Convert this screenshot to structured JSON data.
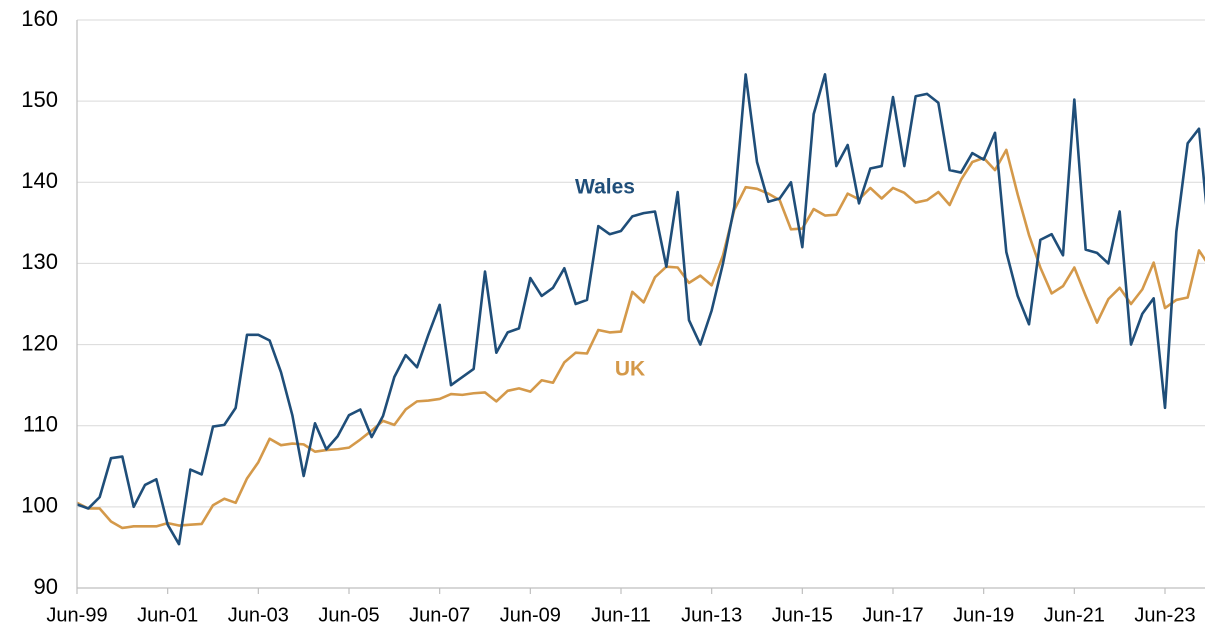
{
  "chart_data": {
    "type": "line",
    "categories": [
      "Jun-99",
      null,
      null,
      null,
      null,
      null,
      null,
      null,
      "Jun-01",
      null,
      null,
      null,
      null,
      null,
      null,
      null,
      "Jun-03",
      null,
      null,
      null,
      null,
      null,
      null,
      null,
      "Jun-05",
      null,
      null,
      null,
      null,
      null,
      null,
      null,
      "Jun-07",
      null,
      null,
      null,
      null,
      null,
      null,
      null,
      "Jun-09",
      null,
      null,
      null,
      null,
      null,
      null,
      null,
      "Jun-11",
      null,
      null,
      null,
      null,
      null,
      null,
      null,
      "Jun-13",
      null,
      null,
      null,
      null,
      null,
      null,
      null,
      "Jun-15",
      null,
      null,
      null,
      null,
      null,
      null,
      null,
      "Jun-17",
      null,
      null,
      null,
      null,
      null,
      null,
      null,
      "Jun-19",
      null,
      null,
      null,
      null,
      null,
      null,
      null,
      "Jun-21",
      null,
      null,
      null,
      null,
      null,
      null,
      null,
      "Jun-23",
      null,
      null,
      null,
      null
    ],
    "series": [
      {
        "name": "Wales",
        "color": "#1f4e79",
        "values": [
          100.3,
          99.8,
          101.2,
          106,
          106.2,
          100,
          102.7,
          103.4,
          97.8,
          95.4,
          104.6,
          104,
          109.9,
          110.1,
          112.2,
          121.2,
          121.2,
          120.5,
          116.6,
          111.3,
          103.8,
          110.3,
          107.1,
          108.7,
          111.3,
          112,
          108.6,
          111.2,
          116,
          118.7,
          117.2,
          121.2,
          124.9,
          115,
          116,
          117,
          129,
          119,
          121.5,
          122,
          128.2,
          126,
          127,
          129.4,
          125,
          125.5,
          134.6,
          133.6,
          134,
          135.8,
          136.2,
          136.4,
          129.6,
          138.8,
          123,
          120,
          124.2,
          130,
          137,
          153.3,
          142.5,
          137.6,
          138,
          140,
          132,
          148.4,
          153.3,
          142,
          144.6,
          137.4,
          141.7,
          142,
          150.5,
          142,
          150.6,
          150.9,
          149.8,
          141.5,
          141.2,
          143.6,
          142.8,
          146.1,
          131.4,
          126,
          122.5,
          132.9,
          133.6,
          131,
          150.2,
          131.7,
          131.3,
          130,
          136.4,
          120,
          123.8,
          125.7,
          112.2,
          133.9,
          144.8,
          146.6,
          132
        ]
      },
      {
        "name": "UK",
        "color": "#d4994a",
        "values": [
          100.5,
          99.8,
          99.8,
          98.2,
          97.4,
          97.6,
          97.6,
          97.6,
          98,
          97.7,
          97.8,
          97.9,
          100.2,
          101,
          100.5,
          103.5,
          105.5,
          108.4,
          107.6,
          107.8,
          107.7,
          106.8,
          107,
          107.1,
          107.3,
          108.3,
          109.4,
          110.6,
          110.1,
          112,
          113,
          113.1,
          113.3,
          113.9,
          113.8,
          114,
          114.1,
          113,
          114.3,
          114.6,
          114.2,
          115.6,
          115.3,
          117.8,
          119,
          118.9,
          121.8,
          121.5,
          121.6,
          126.5,
          125.2,
          128.3,
          129.6,
          129.5,
          127.6,
          128.5,
          127.3,
          131,
          136.6,
          139.4,
          139.2,
          138.6,
          137.8,
          134.2,
          134.3,
          136.7,
          135.9,
          136,
          138.6,
          137.9,
          139.3,
          138,
          139.3,
          138.7,
          137.5,
          137.8,
          138.8,
          137.2,
          140.3,
          142.5,
          143,
          141.5,
          144,
          138.5,
          133.5,
          129.5,
          126.3,
          127.2,
          129.5,
          126,
          122.7,
          125.6,
          127,
          125,
          126.8,
          130.1,
          124.5,
          125.5,
          125.8,
          131.6,
          129.5
        ]
      }
    ],
    "ylim": [
      90,
      160
    ],
    "yticks": [
      90,
      100,
      110,
      120,
      130,
      140,
      150,
      160
    ],
    "grid": true
  }
}
